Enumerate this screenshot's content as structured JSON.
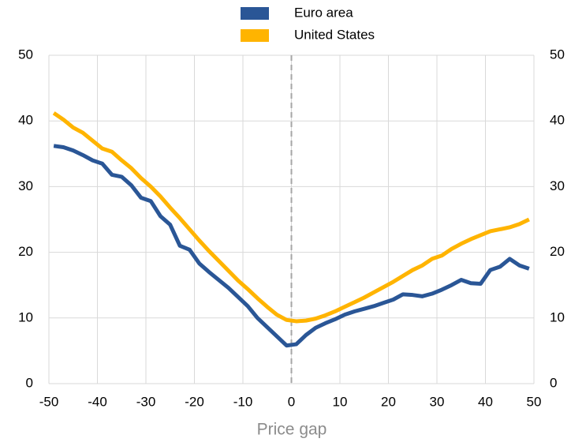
{
  "chart_data": {
    "type": "line",
    "x": [
      -49,
      -47,
      -45,
      -43,
      -41,
      -39,
      -37,
      -35,
      -33,
      -31,
      -29,
      -27,
      -25,
      -23,
      -21,
      -19,
      -17,
      -15,
      -13,
      -11,
      -9,
      -7,
      -5,
      -3,
      -1,
      1,
      3,
      5,
      7,
      9,
      11,
      13,
      15,
      17,
      19,
      21,
      23,
      25,
      27,
      29,
      31,
      33,
      35,
      37,
      39,
      41,
      43,
      45,
      47,
      49
    ],
    "series": [
      {
        "name": "Euro area",
        "color": "#2a5696",
        "values": [
          36.2,
          36,
          35.5,
          34.8,
          34,
          33.5,
          31.8,
          31.5,
          30.2,
          28.3,
          27.8,
          25.5,
          24.2,
          21,
          20.4,
          18.3,
          17,
          15.8,
          14.6,
          13.2,
          11.8,
          10,
          8.6,
          7.2,
          5.8,
          6,
          7.4,
          8.5,
          9.2,
          9.8,
          10.5,
          11,
          11.4,
          11.8,
          12.3,
          12.8,
          13.6,
          13.5,
          13.3,
          13.7,
          14.3,
          15,
          15.8,
          15.3,
          15.2,
          17.3,
          17.8,
          19,
          18,
          17.5
        ]
      },
      {
        "name": "United States",
        "color": "#ffb400",
        "values": [
          41.2,
          40.2,
          39,
          38.2,
          37,
          35.8,
          35.3,
          34,
          32.8,
          31.3,
          30,
          28.5,
          26.8,
          25.2,
          23.5,
          21.8,
          20.2,
          18.7,
          17.2,
          15.7,
          14.4,
          13,
          11.7,
          10.5,
          9.7,
          9.5,
          9.6,
          9.9,
          10.4,
          11,
          11.7,
          12.4,
          13.1,
          13.9,
          14.7,
          15.5,
          16.4,
          17.3,
          18,
          19,
          19.5,
          20.5,
          21.3,
          22,
          22.6,
          23.2,
          23.5,
          23.8,
          24.3,
          25
        ]
      }
    ],
    "xlabel": "Price gap",
    "xlim": [
      -50,
      50
    ],
    "xticks": [
      -50,
      -40,
      -30,
      -20,
      -10,
      0,
      10,
      20,
      30,
      40,
      50
    ],
    "ylim": [
      0,
      50
    ],
    "yticks": [
      0,
      10,
      20,
      30,
      40,
      50
    ],
    "grid": true,
    "vline_x": 0
  }
}
